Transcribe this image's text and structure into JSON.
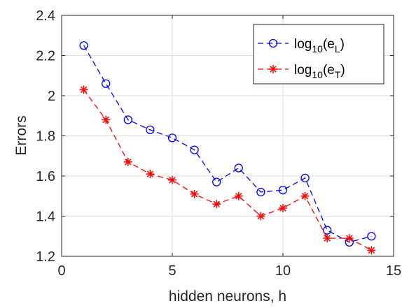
{
  "chart_data": {
    "type": "line",
    "title": "",
    "xlabel": "hidden neurons, h",
    "ylabel": "Errors",
    "xlim": [
      0,
      15
    ],
    "ylim": [
      1.2,
      2.4
    ],
    "xticks": [
      0,
      5,
      10,
      15
    ],
    "xtick_labels": [
      "0",
      "5",
      "10",
      "15"
    ],
    "yticks": [
      1.2,
      1.4,
      1.6,
      1.8,
      2.0,
      2.2,
      2.4
    ],
    "ytick_labels": [
      "1.2",
      "1.4",
      "1.6",
      "1.8",
      "2",
      "2.2",
      "2.4"
    ],
    "grid": true,
    "legend_position": "top-right",
    "x": [
      1,
      2,
      3,
      4,
      5,
      6,
      7,
      8,
      9,
      10,
      11,
      12,
      13,
      14
    ],
    "series": [
      {
        "name": "log10(eL)",
        "name_base": "log",
        "name_sub1": "10",
        "name_mid": "(e",
        "name_sub2": "L",
        "name_end": ")",
        "color": "#0000ff",
        "marker": "circle",
        "linestyle": "dashed",
        "values": [
          2.25,
          2.06,
          1.88,
          1.83,
          1.79,
          1.73,
          1.57,
          1.64,
          1.52,
          1.53,
          1.59,
          1.33,
          1.27,
          1.3
        ]
      },
      {
        "name": "log10(eT)",
        "name_base": "log",
        "name_sub1": "10",
        "name_mid": "(e",
        "name_sub2": "T",
        "name_end": ")",
        "color": "#ff0000",
        "marker": "asterisk",
        "linestyle": "dashed",
        "values": [
          2.03,
          1.88,
          1.67,
          1.61,
          1.58,
          1.51,
          1.46,
          1.5,
          1.4,
          1.44,
          1.5,
          1.29,
          1.29,
          1.23
        ]
      }
    ]
  }
}
